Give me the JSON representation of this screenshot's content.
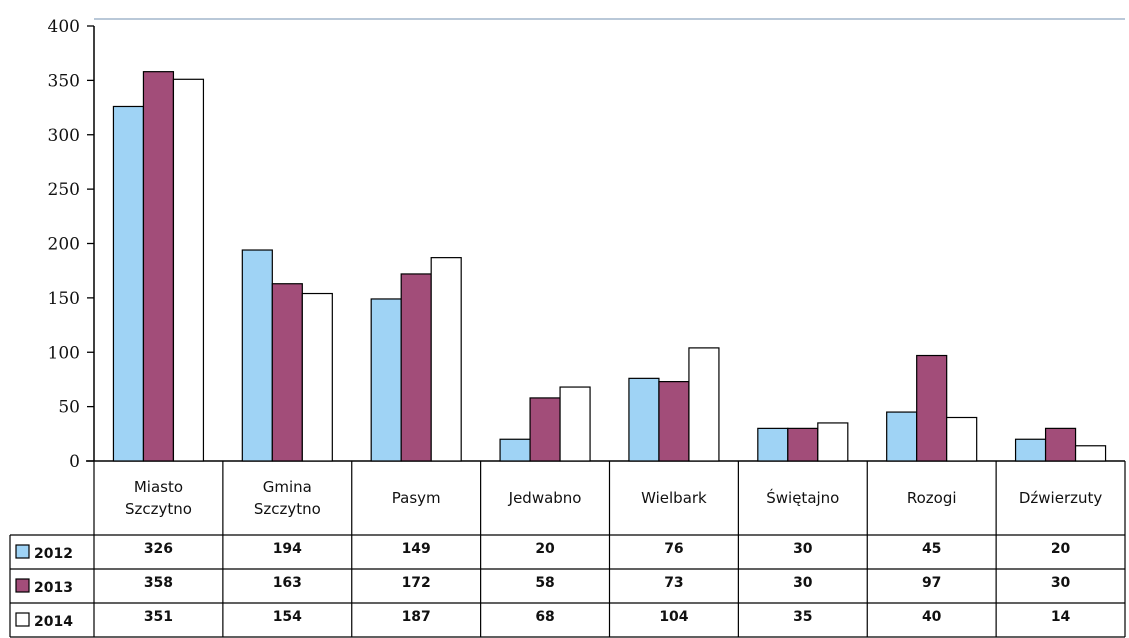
{
  "chart_data": {
    "type": "bar",
    "title": "",
    "xlabel": "",
    "ylabel": "",
    "ylim": [
      0,
      400
    ],
    "yticks": [
      0,
      50,
      100,
      150,
      200,
      250,
      300,
      350,
      400
    ],
    "grid": false,
    "legend": "data-table-left",
    "categories": [
      [
        "Miasto",
        "Szczytno"
      ],
      [
        "Gmina",
        "Szczytno"
      ],
      [
        "Pasym"
      ],
      [
        "Jedwabno"
      ],
      [
        "Wielbark"
      ],
      [
        "Świętajno"
      ],
      [
        "Rozogi"
      ],
      [
        "Dźwierzuty"
      ]
    ],
    "series": [
      {
        "name": "2012",
        "color": "#9fd3f5",
        "values": [
          326,
          194,
          149,
          20,
          76,
          30,
          45,
          20
        ]
      },
      {
        "name": "2013",
        "color": "#a24d79",
        "values": [
          358,
          163,
          172,
          58,
          73,
          30,
          97,
          30
        ]
      },
      {
        "name": "2014",
        "color": "#ffffff",
        "values": [
          351,
          154,
          187,
          68,
          104,
          35,
          40,
          14
        ]
      }
    ]
  }
}
